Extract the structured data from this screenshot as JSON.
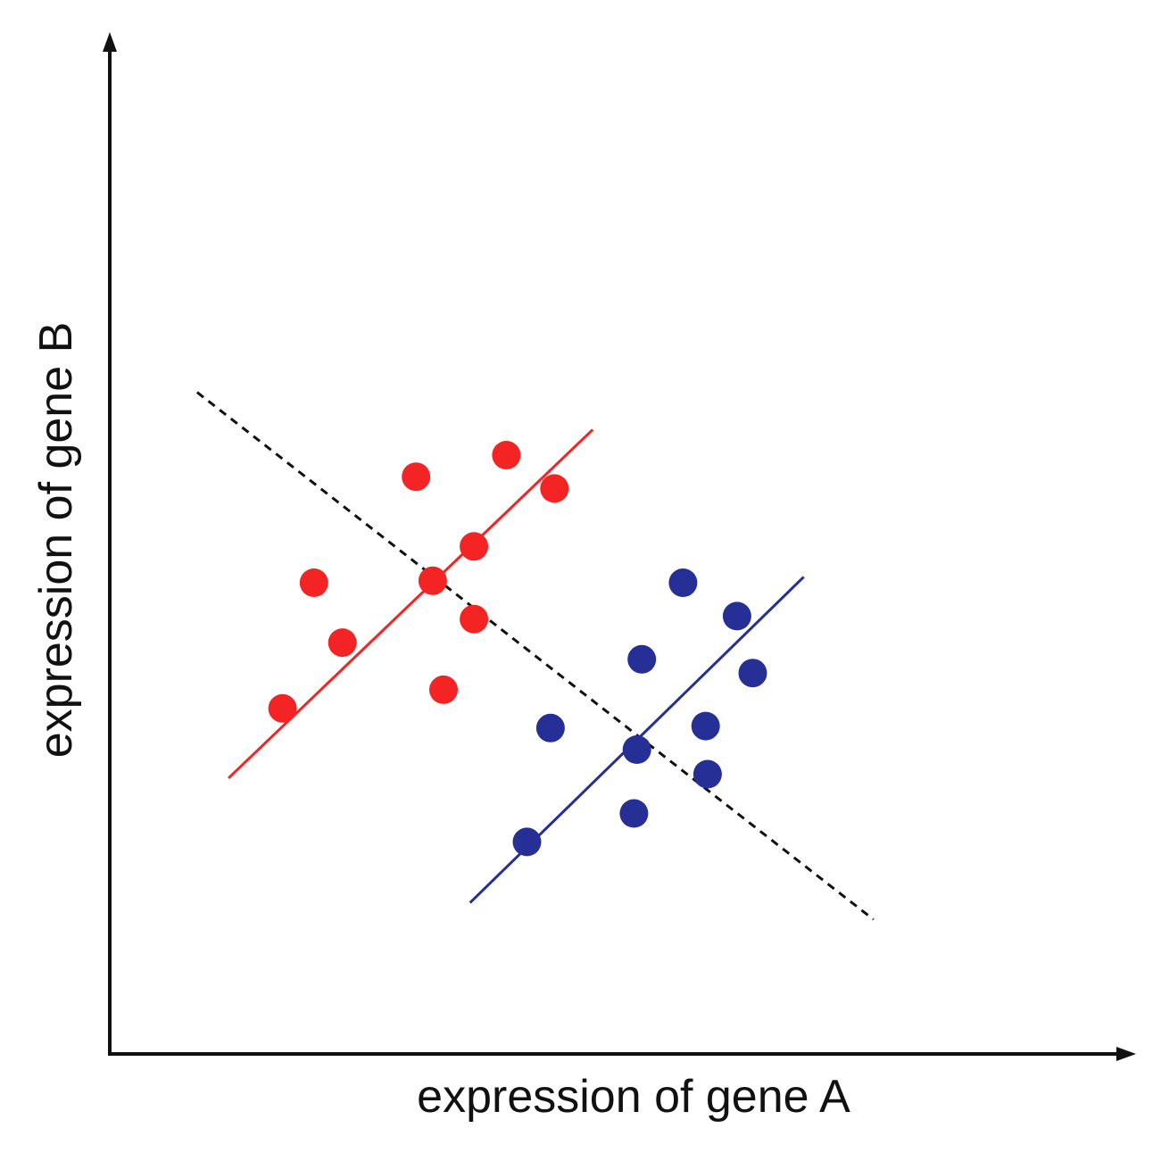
{
  "chart_data": {
    "type": "scatter",
    "title": "",
    "xlabel": "expression of gene A",
    "ylabel": "expression of gene B",
    "xlim": [
      0,
      100
    ],
    "ylim": [
      0,
      100
    ],
    "grid": false,
    "legend": "none",
    "series": [
      {
        "color": "#f52424",
        "points": [
          {
            "x": 17.6,
            "y": 35.2
          },
          {
            "x": 20.8,
            "y": 48.0
          },
          {
            "x": 23.7,
            "y": 41.9
          },
          {
            "x": 31.2,
            "y": 58.8
          },
          {
            "x": 32.9,
            "y": 48.2
          },
          {
            "x": 34.0,
            "y": 37.1
          },
          {
            "x": 37.1,
            "y": 44.3
          },
          {
            "x": 37.1,
            "y": 51.7
          },
          {
            "x": 40.4,
            "y": 61.0
          },
          {
            "x": 45.3,
            "y": 57.6
          }
        ],
        "fit_line": {
          "x1": 12.1,
          "y1": 28.1,
          "x2": 49.2,
          "y2": 63.6
        }
      },
      {
        "color": "#262f96",
        "points": [
          {
            "x": 42.5,
            "y": 21.6
          },
          {
            "x": 44.9,
            "y": 33.2
          },
          {
            "x": 53.4,
            "y": 24.5
          },
          {
            "x": 53.7,
            "y": 31.0
          },
          {
            "x": 54.2,
            "y": 40.2
          },
          {
            "x": 58.4,
            "y": 48.0
          },
          {
            "x": 60.7,
            "y": 33.4
          },
          {
            "x": 60.9,
            "y": 28.5
          },
          {
            "x": 63.9,
            "y": 44.6
          },
          {
            "x": 65.5,
            "y": 38.8
          }
        ],
        "fit_line": {
          "x1": 36.7,
          "y1": 15.4,
          "x2": 70.7,
          "y2": 48.6
        }
      }
    ],
    "reference_line": {
      "style": "dashed",
      "color": "#111111",
      "x1": 8.9,
      "y1": 67.4,
      "x2": 77.8,
      "y2": 13.7
    }
  }
}
